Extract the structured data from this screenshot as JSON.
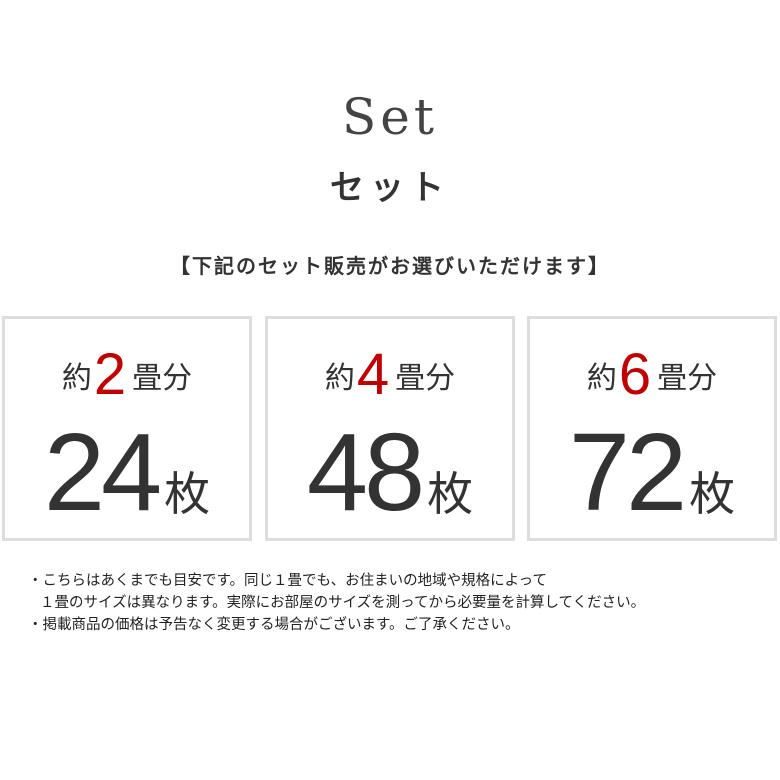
{
  "header": {
    "title_en": "Set",
    "title_ja": "セット",
    "lead": "【下記のセット販売がお選びいただけます】"
  },
  "cards": [
    {
      "prefix": "約",
      "size": "2",
      "suffix": "畳分",
      "count": "24",
      "unit": "枚"
    },
    {
      "prefix": "約",
      "size": "4",
      "suffix": "畳分",
      "count": "48",
      "unit": "枚"
    },
    {
      "prefix": "約",
      "size": "6",
      "suffix": "畳分",
      "count": "72",
      "unit": "枚"
    }
  ],
  "notes": [
    "・こちらはあくまでも目安です。同じ１畳でも、お住まいの地域や規格によって",
    "１畳のサイズは異なります。実際にお部屋のサイズを測ってから必要量を計算してください。",
    "・掲載商品の価格は予告なく変更する場合がございます。ご了承ください。"
  ],
  "colors": {
    "accent": "#c00000",
    "text": "#333333",
    "border": "#dddddd"
  }
}
